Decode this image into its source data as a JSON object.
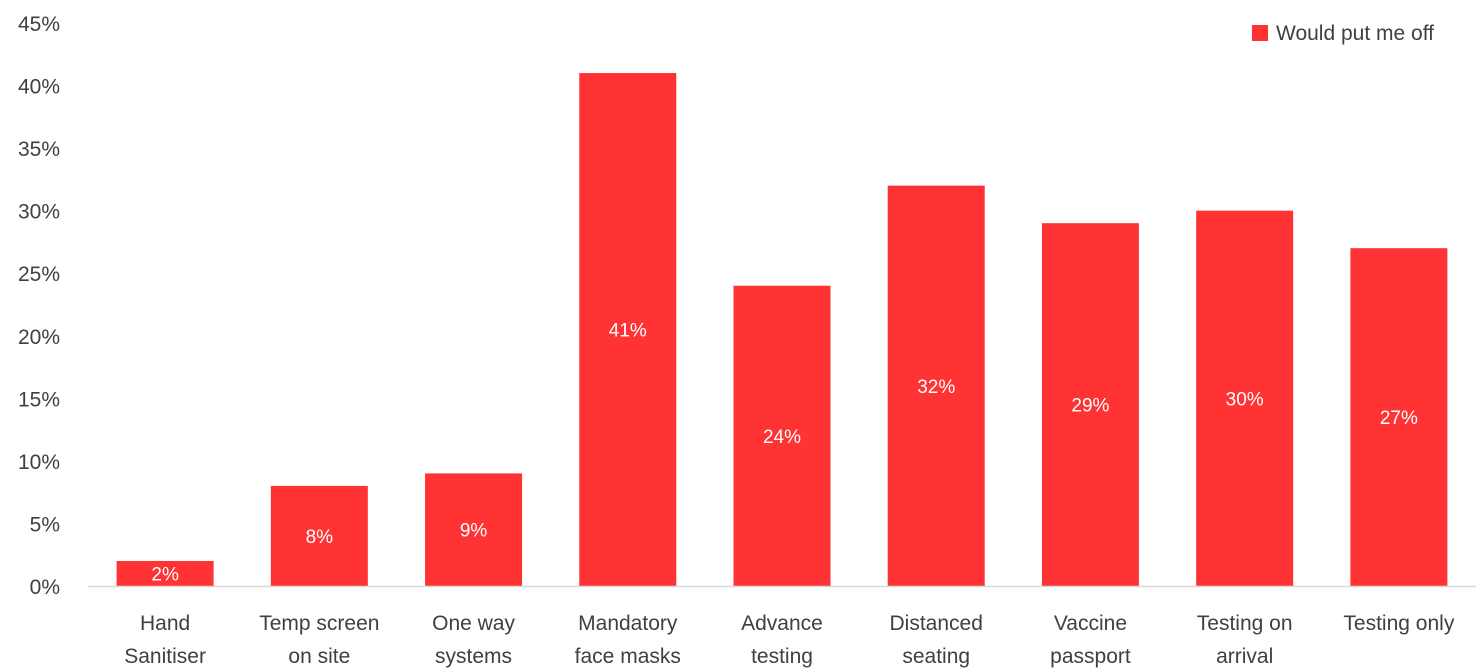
{
  "chart_data": {
    "type": "bar",
    "categories": [
      [
        "Hand",
        "Sanitiser"
      ],
      [
        "Temp screen",
        "on site"
      ],
      [
        "One way",
        "systems"
      ],
      [
        "Mandatory",
        "face masks"
      ],
      [
        "Advance",
        "testing"
      ],
      [
        "Distanced",
        "seating"
      ],
      [
        "Vaccine",
        "passport"
      ],
      [
        "Testing on",
        "arrival"
      ],
      [
        "Testing only"
      ]
    ],
    "series": [
      {
        "name": "Would put me off",
        "values": [
          2,
          8,
          9,
          41,
          24,
          32,
          29,
          30,
          27
        ],
        "data_labels": [
          "2%",
          "8%",
          "9%",
          "41%",
          "24%",
          "32%",
          "29%",
          "30%",
          "27%"
        ],
        "color": "#ff3333"
      }
    ],
    "ylim": [
      0,
      45
    ],
    "yticks": [
      0,
      5,
      10,
      15,
      20,
      25,
      30,
      35,
      40,
      45
    ],
    "ytick_labels": [
      "0%",
      "5%",
      "10%",
      "15%",
      "20%",
      "25%",
      "30%",
      "35%",
      "40%",
      "45%"
    ],
    "title": "",
    "xlabel": "",
    "ylabel": "",
    "grid": false,
    "legend_position": "top-right",
    "axis_color": "#d9d9d9",
    "text_color": "#404040"
  }
}
